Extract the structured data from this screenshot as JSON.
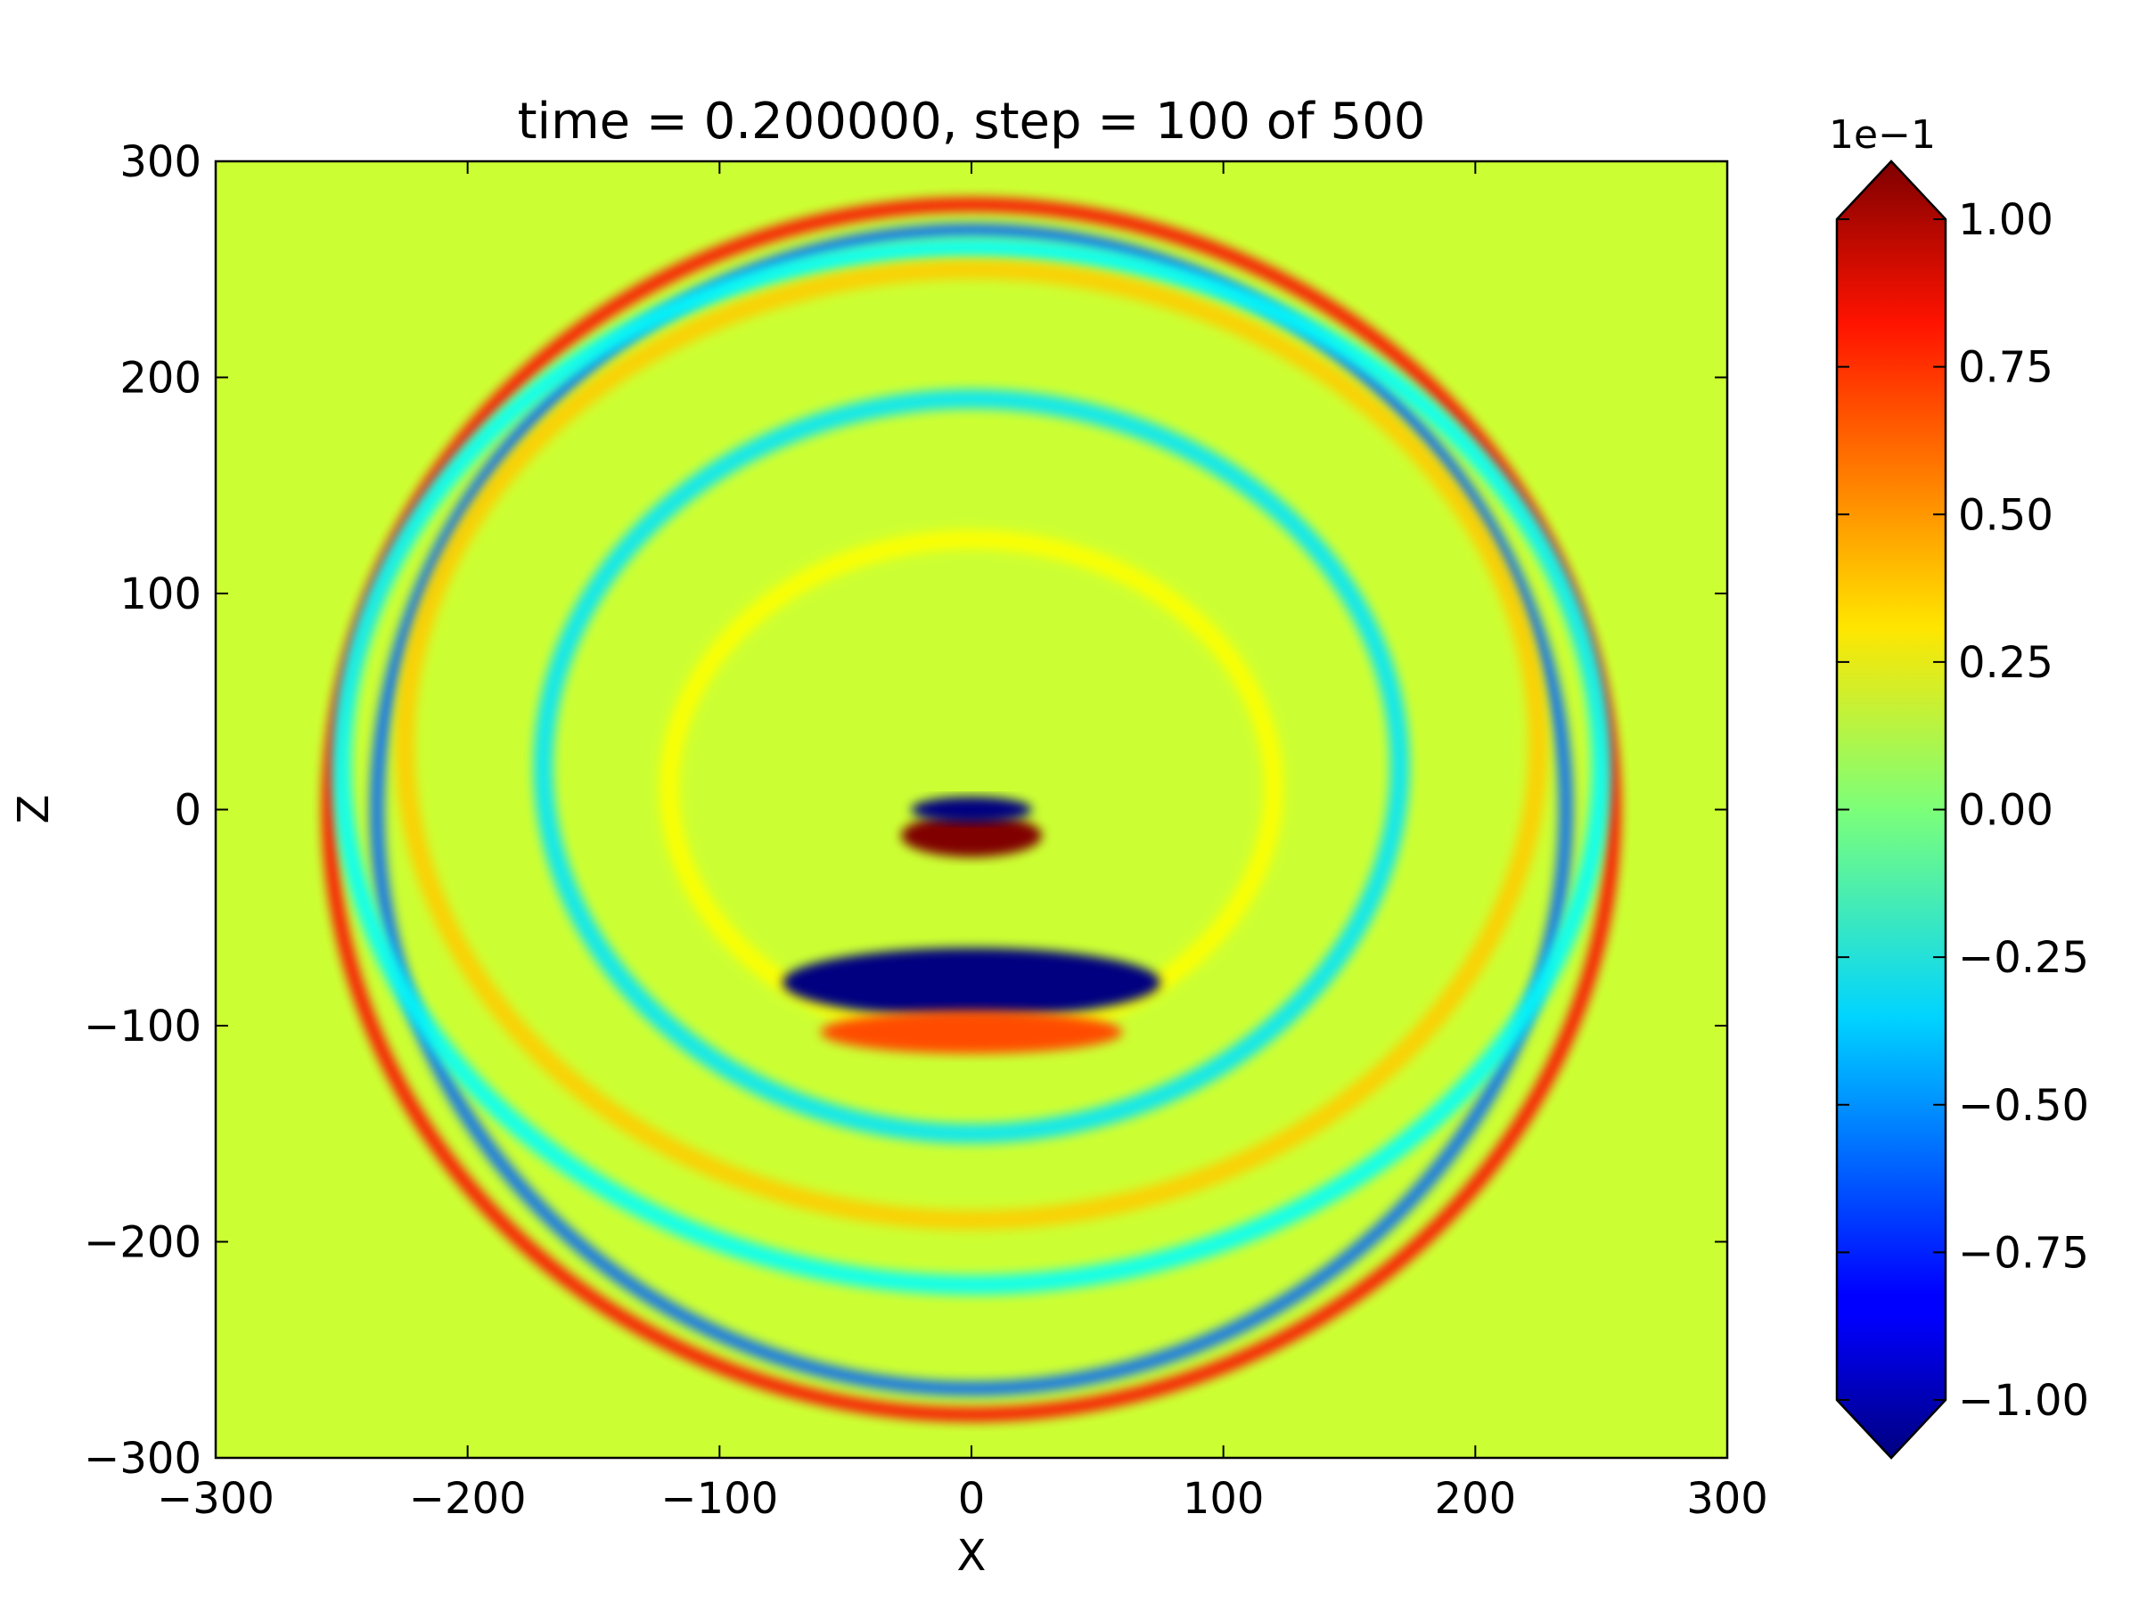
{
  "chart_data": {
    "type": "heatmap",
    "title": "time = 0.200000, step = 100 of 500",
    "xlabel": "X",
    "ylabel": "Z",
    "xlim": [
      -300,
      300
    ],
    "ylim": [
      -300,
      300
    ],
    "x_ticks": [
      -300,
      -200,
      -100,
      0,
      100,
      200,
      300
    ],
    "y_ticks": [
      -300,
      -200,
      -100,
      0,
      100,
      200,
      300
    ],
    "x_tick_labels": [
      "−300",
      "−200",
      "−100",
      "0",
      "100",
      "200",
      "300"
    ],
    "y_tick_labels": [
      "−300",
      "−200",
      "−100",
      "0",
      "100",
      "200",
      "300"
    ],
    "colorbar": {
      "colormap": "jet",
      "scale_label": "1e−1",
      "vmin": -1.0,
      "vmax": 1.0,
      "extend": "both",
      "ticks": [
        1.0,
        0.75,
        0.5,
        0.25,
        0.0,
        -0.25,
        -0.5,
        -0.75,
        -1.0
      ],
      "tick_labels": [
        "1.00",
        "0.75",
        "0.50",
        "0.25",
        "0.00",
        "−0.25",
        "−0.50",
        "−0.75",
        "−1.00"
      ]
    },
    "background_value": 0.15,
    "features": [
      {
        "shape": "ring",
        "cx": 0,
        "cz": 0,
        "rx": 255,
        "rz": 280,
        "value": 0.75,
        "note": "outer red wavefront"
      },
      {
        "shape": "ring",
        "cx": 0,
        "cz": 0,
        "rx": 236,
        "rz": 268,
        "value": -0.55,
        "note": "blue wavefront"
      },
      {
        "shape": "ring",
        "cx": 0,
        "cz": 20,
        "rx": 250,
        "rz": 240,
        "value": -0.25,
        "note": "cyan ring"
      },
      {
        "shape": "ring",
        "cx": 0,
        "cz": 30,
        "rx": 225,
        "rz": 220,
        "value": 0.35,
        "note": "yellow ring"
      },
      {
        "shape": "ring",
        "cx": 0,
        "cz": 20,
        "rx": 170,
        "rz": 170,
        "value": -0.3,
        "note": "inner cyan ring"
      },
      {
        "shape": "ring",
        "cx": 0,
        "cz": 10,
        "rx": 120,
        "rz": 115,
        "value": 0.25,
        "note": "inner yellow ring"
      },
      {
        "shape": "blob",
        "cx": 0,
        "cz": -80,
        "rx": 75,
        "rz": 16,
        "value": -1.0,
        "note": "dark blue arc below source"
      },
      {
        "shape": "blob",
        "cx": 0,
        "cz": -103,
        "rx": 60,
        "rz": 10,
        "value": 0.6,
        "note": "orange arc below"
      },
      {
        "shape": "blob",
        "cx": 0,
        "cz": -12,
        "rx": 28,
        "rz": 10,
        "value": 1.0,
        "note": "dark red source band"
      },
      {
        "shape": "blob",
        "cx": 0,
        "cz": 0,
        "rx": 24,
        "rz": 6,
        "value": -1.0,
        "note": "dark blue source band"
      }
    ]
  }
}
